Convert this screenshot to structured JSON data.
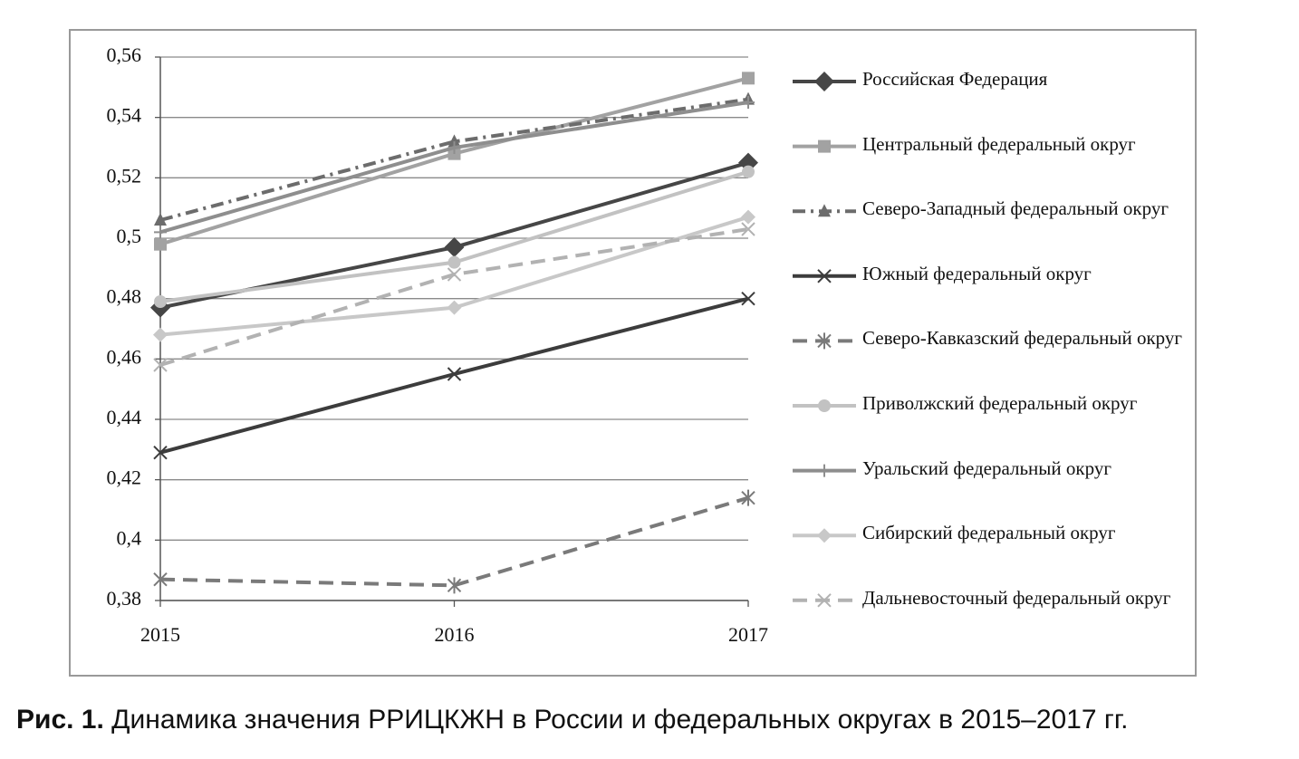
{
  "chart_data": {
    "type": "line",
    "figure_label": "Рис. 1.",
    "title": "Динамика значения РРИЦКЖН в России и федеральных округах в 2015–2017 гг.",
    "categories": [
      "2015",
      "2016",
      "2017"
    ],
    "ylim": [
      0.38,
      0.56
    ],
    "yticks": [
      {
        "value": 0.38,
        "label": "0,38"
      },
      {
        "value": 0.4,
        "label": "0,4"
      },
      {
        "value": 0.42,
        "label": "0,42"
      },
      {
        "value": 0.44,
        "label": "0,44"
      },
      {
        "value": 0.46,
        "label": "0,46"
      },
      {
        "value": 0.48,
        "label": "0,48"
      },
      {
        "value": 0.5,
        "label": "0,5"
      },
      {
        "value": 0.52,
        "label": "0,52"
      },
      {
        "value": 0.54,
        "label": "0,54"
      },
      {
        "value": 0.56,
        "label": "0,56"
      }
    ],
    "grid": true,
    "legend": "right",
    "series": [
      {
        "name": "Российская Федерация",
        "color": "#464646",
        "dash": "solid",
        "marker": "diamond",
        "values": [
          0.477,
          0.497,
          0.525
        ]
      },
      {
        "name": "Центральный федеральный округ",
        "color": "#a2a2a2",
        "dash": "solid",
        "marker": "square",
        "values": [
          0.498,
          0.528,
          0.553
        ]
      },
      {
        "name": "Северо-Западный федеральный округ",
        "color": "#6c6c6c",
        "dash": "dashdot",
        "marker": "triangle",
        "values": [
          0.506,
          0.532,
          0.546
        ]
      },
      {
        "name": "Южный федеральный округ",
        "color": "#3c3c3c",
        "dash": "solid",
        "marker": "x",
        "values": [
          0.429,
          0.455,
          0.48
        ]
      },
      {
        "name": "Северо-Кавказский федеральный округ",
        "color": "#7a7a7a",
        "dash": "dash",
        "marker": "star",
        "values": [
          0.387,
          0.385,
          0.414
        ]
      },
      {
        "name": "Приволжский федеральный округ",
        "color": "#c2c2c2",
        "dash": "solid",
        "marker": "circle",
        "values": [
          0.479,
          0.492,
          0.522
        ]
      },
      {
        "name": "Уральский федеральный округ",
        "color": "#8e8e8e",
        "dash": "solid",
        "marker": "plus",
        "values": [
          0.502,
          0.53,
          0.545
        ]
      },
      {
        "name": "Сибирский федеральный округ",
        "color": "#c8c8c8",
        "dash": "solid",
        "marker": "diamond-small",
        "values": [
          0.468,
          0.477,
          0.507
        ]
      },
      {
        "name": "Дальневосточный федеральный округ",
        "color": "#b2b2b2",
        "dash": "dash",
        "marker": "x",
        "values": [
          0.458,
          0.488,
          0.503
        ]
      }
    ]
  }
}
